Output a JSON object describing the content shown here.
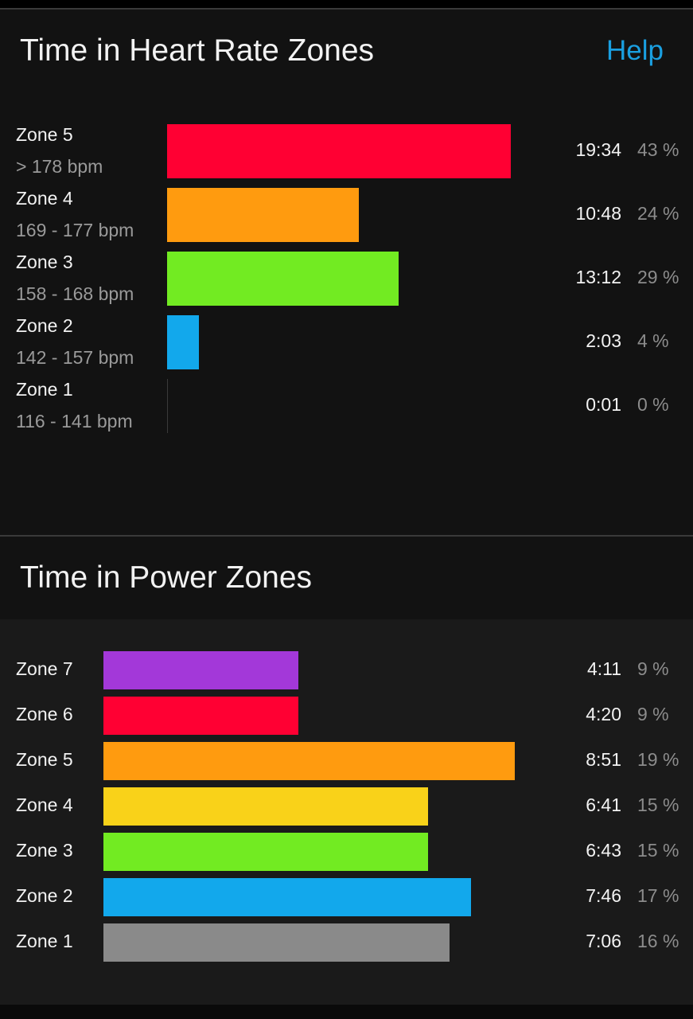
{
  "heart_rate": {
    "title": "Time in Heart Rate Zones",
    "help_label": "Help",
    "zones": [
      {
        "name": "Zone 5",
        "range": "> 178 bpm",
        "time": "19:34",
        "percent": "43 %",
        "value": 43,
        "color": "#ff0033"
      },
      {
        "name": "Zone 4",
        "range": "169 - 177 bpm",
        "time": "10:48",
        "percent": "24 %",
        "value": 24,
        "color": "#ff9b0f"
      },
      {
        "name": "Zone 3",
        "range": "158 - 168 bpm",
        "time": "13:12",
        "percent": "29 %",
        "value": 29,
        "color": "#72eb22"
      },
      {
        "name": "Zone 2",
        "range": "142 - 157 bpm",
        "time": "2:03",
        "percent": "4 %",
        "value": 4,
        "color": "#12a8ec"
      },
      {
        "name": "Zone 1",
        "range": "116 - 141 bpm",
        "time": "0:01",
        "percent": "0 %",
        "value": 0,
        "color": "#8a8a8a"
      }
    ]
  },
  "power": {
    "title": "Time in Power Zones",
    "zones": [
      {
        "name": "Zone 7",
        "time": "4:11",
        "percent": "9 %",
        "value": 9,
        "color": "#a338d9"
      },
      {
        "name": "Zone 6",
        "time": "4:20",
        "percent": "9 %",
        "value": 9,
        "color": "#ff0033"
      },
      {
        "name": "Zone 5",
        "time": "8:51",
        "percent": "19 %",
        "value": 19,
        "color": "#ff9b0f"
      },
      {
        "name": "Zone 4",
        "time": "6:41",
        "percent": "15 %",
        "value": 15,
        "color": "#f9d219"
      },
      {
        "name": "Zone 3",
        "time": "6:43",
        "percent": "15 %",
        "value": 15,
        "color": "#72eb22"
      },
      {
        "name": "Zone 2",
        "time": "7:46",
        "percent": "17 %",
        "value": 17,
        "color": "#12a8ec"
      },
      {
        "name": "Zone 1",
        "time": "7:06",
        "percent": "16 %",
        "value": 16,
        "color": "#8a8a8a"
      }
    ]
  }
}
